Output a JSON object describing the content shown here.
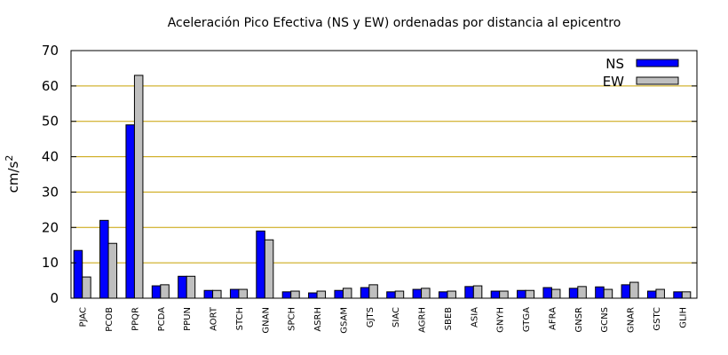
{
  "chart_data": {
    "type": "bar",
    "title": "Aceleración Pico Efectiva (NS y EW) ordenadas por distancia al epicentro",
    "xlabel": "",
    "ylabel_base": "cm/s",
    "ylabel_exp": "2",
    "ylim": [
      0,
      70
    ],
    "yticks": [
      "0",
      "10",
      "20",
      "30",
      "40",
      "50",
      "60",
      "70"
    ],
    "grid": true,
    "legend_position": "top-right",
    "categories": [
      "PJAC",
      "PCOB",
      "PPQR",
      "PCDA",
      "PPUN",
      "AORT",
      "STCH",
      "GNAN",
      "SPCH",
      "ASRH",
      "GSAM",
      "GJTS",
      "SIAC",
      "AGRH",
      "SBEB",
      "ASIA",
      "GNYH",
      "GTGA",
      "AFRA",
      "GNSR",
      "GCNS",
      "GNAR",
      "GSTC",
      "GLIH"
    ],
    "series": [
      {
        "name": "NS",
        "color": "#0000ff",
        "values": [
          13.5,
          22,
          49,
          3.5,
          6.2,
          2.2,
          2.5,
          19,
          1.8,
          1.5,
          2.2,
          3.0,
          1.8,
          2.5,
          1.8,
          3.3,
          2.0,
          2.2,
          3.0,
          2.8,
          3.2,
          3.8,
          2.0,
          1.8
        ]
      },
      {
        "name": "EW",
        "color": "#bfbfbf",
        "values": [
          6.0,
          15.5,
          63,
          3.8,
          6.2,
          2.2,
          2.5,
          16.5,
          2.0,
          2.0,
          2.8,
          3.8,
          2.0,
          2.8,
          2.0,
          3.5,
          2.0,
          2.2,
          2.5,
          3.3,
          2.5,
          4.5,
          2.5,
          1.8
        ]
      }
    ]
  }
}
